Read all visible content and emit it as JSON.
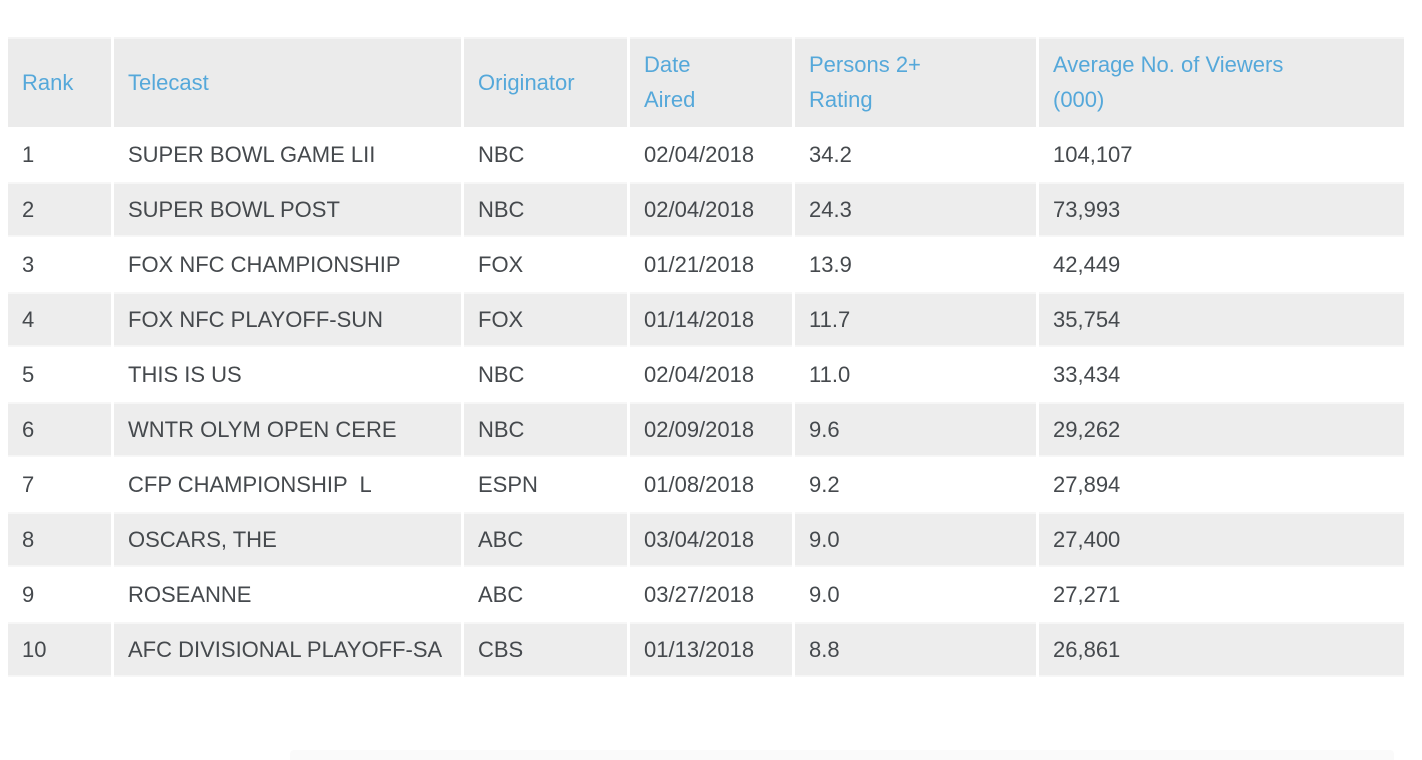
{
  "colors": {
    "header_text_blue": "#55a8da",
    "header_bg": "#ebebeb",
    "stripe_row_bg": "#ededed",
    "body_text": "#45494d",
    "page_bg": "#ffffff"
  },
  "table": {
    "header": {
      "rank": "Rank",
      "telecast": "Telecast",
      "originator": "Originator",
      "date_aired": "Date\nAired",
      "rating": "Persons 2+\nRating",
      "viewers": "Average No. of Viewers\n(000)"
    },
    "rows": [
      {
        "rank": "1",
        "telecast": "SUPER BOWL GAME LII",
        "originator": "NBC",
        "date_aired": "02/04/2018",
        "rating": "34.2",
        "viewers": "104,107"
      },
      {
        "rank": "2",
        "telecast": "SUPER BOWL POST",
        "originator": "NBC",
        "date_aired": "02/04/2018",
        "rating": "24.3",
        "viewers": "73,993"
      },
      {
        "rank": "3",
        "telecast": "FOX NFC CHAMPIONSHIP",
        "originator": "FOX",
        "date_aired": "01/21/2018",
        "rating": "13.9",
        "viewers": "42,449"
      },
      {
        "rank": "4",
        "telecast": "FOX NFC PLAYOFF-SUN",
        "originator": "FOX",
        "date_aired": "01/14/2018",
        "rating": "11.7",
        "viewers": "35,754"
      },
      {
        "rank": "5",
        "telecast": "THIS IS US",
        "originator": "NBC",
        "date_aired": "02/04/2018",
        "rating": "11.0",
        "viewers": "33,434"
      },
      {
        "rank": "6",
        "telecast": "WNTR OLYM OPEN CERE",
        "originator": "NBC",
        "date_aired": "02/09/2018",
        "rating": "9.6",
        "viewers": "29,262"
      },
      {
        "rank": "7",
        "telecast": "CFP CHAMPIONSHIP  L",
        "originator": "ESPN",
        "date_aired": "01/08/2018",
        "rating": "9.2",
        "viewers": "27,894"
      },
      {
        "rank": "8",
        "telecast": "OSCARS, THE",
        "originator": "ABC",
        "date_aired": "03/04/2018",
        "rating": "9.0",
        "viewers": "27,400"
      },
      {
        "rank": "9",
        "telecast": "ROSEANNE",
        "originator": "ABC",
        "date_aired": "03/27/2018",
        "rating": "9.0",
        "viewers": "27,271"
      },
      {
        "rank": "10",
        "telecast": "AFC DIVISIONAL PLAYOFF-SA",
        "originator": "CBS",
        "date_aired": "01/13/2018",
        "rating": "8.8",
        "viewers": "26,861"
      }
    ]
  }
}
